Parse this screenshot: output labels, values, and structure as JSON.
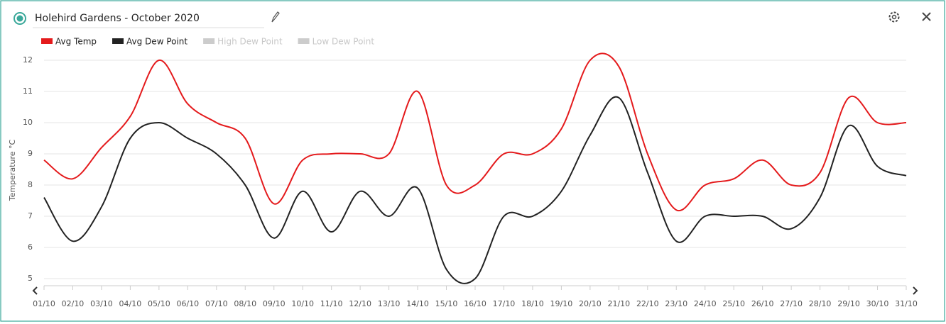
{
  "header": {
    "title": "Holehird Gardens - October 2020"
  },
  "chart_data": {
    "type": "line",
    "ylabel": "Temperature °C",
    "categories": [
      "01/10",
      "02/10",
      "03/10",
      "04/10",
      "05/10",
      "06/10",
      "07/10",
      "08/10",
      "09/10",
      "10/10",
      "11/10",
      "12/10",
      "13/10",
      "14/10",
      "15/10",
      "16/10",
      "17/10",
      "18/10",
      "19/10",
      "20/10",
      "21/10",
      "22/10",
      "23/10",
      "24/10",
      "25/10",
      "26/10",
      "27/10",
      "28/10",
      "29/10",
      "30/10",
      "31/10"
    ],
    "series": [
      {
        "name": "Avg Temp",
        "color": "#e41a1c",
        "values": [
          8.8,
          8.2,
          9.2,
          10.2,
          12,
          10.6,
          10,
          9.5,
          7.4,
          8.8,
          9,
          9,
          9,
          11,
          8,
          8,
          9,
          9,
          9.8,
          12,
          11.8,
          9,
          7.2,
          8,
          8.2,
          8.8,
          8,
          8.4,
          10.8,
          10,
          10
        ]
      },
      {
        "name": "Avg Dew Point",
        "color": "#222222",
        "values": [
          7.6,
          6.2,
          7.3,
          9.5,
          10,
          9.5,
          9,
          8,
          6.3,
          7.8,
          6.5,
          7.8,
          7,
          7.9,
          5.3,
          5,
          7,
          7,
          7.8,
          9.6,
          10.8,
          8.4,
          6.2,
          7,
          7,
          7,
          6.6,
          7.6,
          9.9,
          8.6,
          8.3
        ]
      }
    ],
    "hidden_series": [
      {
        "name": "High Dew Point",
        "color": "#cccccc"
      },
      {
        "name": "Low Dew Point",
        "color": "#cccccc"
      }
    ],
    "ylim": [
      5,
      12
    ],
    "yticks": [
      5,
      6,
      7,
      8,
      9,
      10,
      11,
      12
    ],
    "grid": true
  }
}
